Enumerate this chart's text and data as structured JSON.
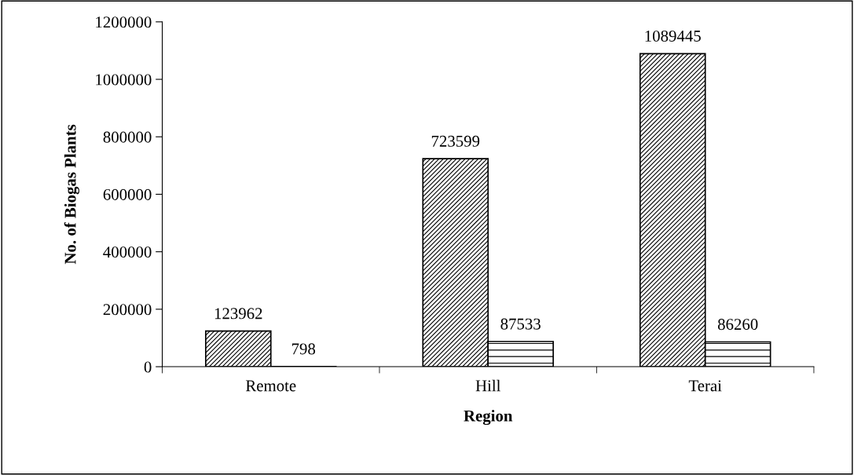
{
  "chart_data": {
    "type": "bar",
    "xlabel": "Region",
    "ylabel": "No. of Biogas Plants",
    "categories": [
      "Remote",
      "Hill",
      "Terai"
    ],
    "series": [
      {
        "color": "#000000",
        "values": [
          123962,
          723599,
          1089445
        ]
      },
      {
        "color": "#000000",
        "values": [
          798,
          87533,
          86260
        ]
      }
    ],
    "ylim": [
      0,
      1200000
    ],
    "yticks": [
      0,
      200000,
      400000,
      600000,
      800000,
      1000000,
      1200000
    ],
    "grid": false,
    "legend": false,
    "data_labels": true
  }
}
